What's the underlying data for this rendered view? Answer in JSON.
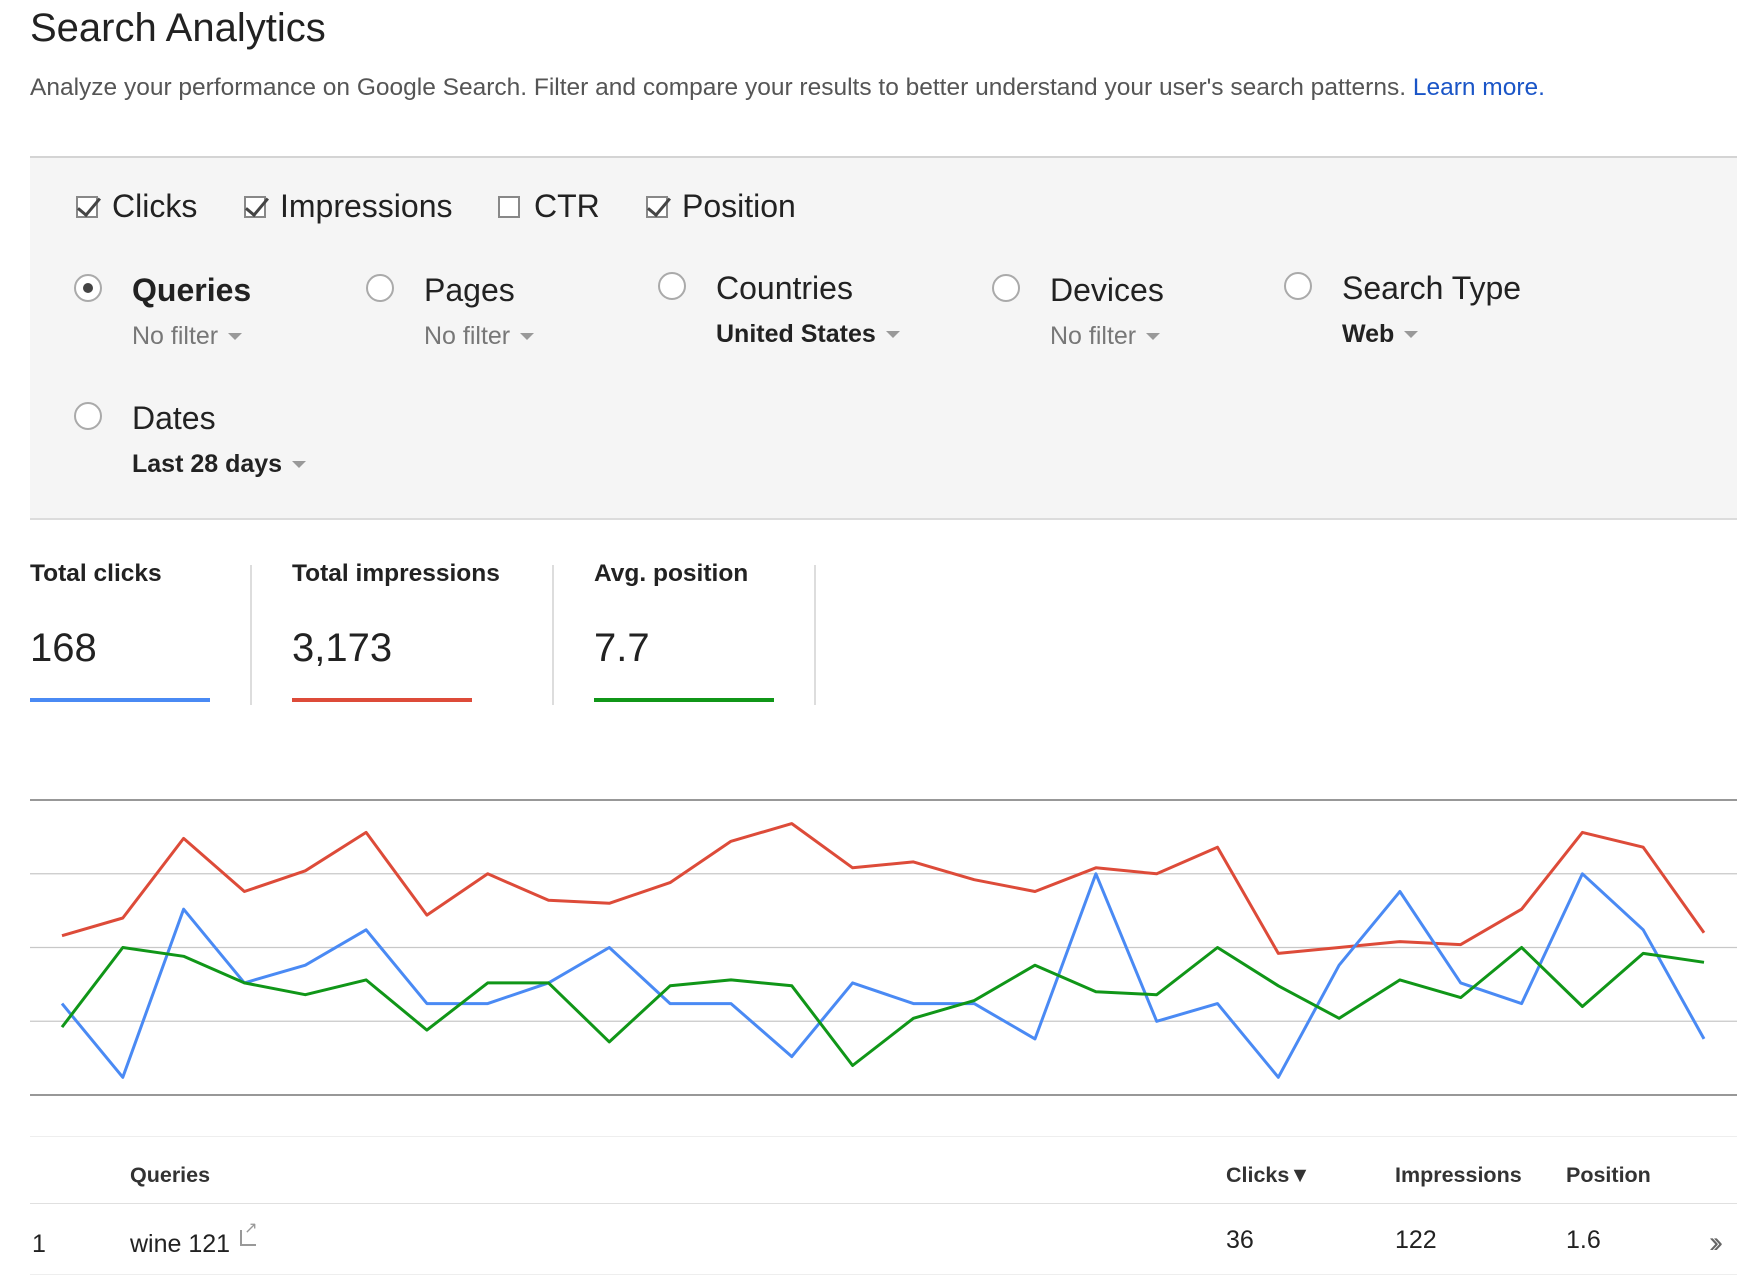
{
  "header": {
    "title": "Search Analytics",
    "subtitle": "Analyze your performance on Google Search. Filter and compare your results to better understand your user's search patterns.",
    "learn_more": "Learn more."
  },
  "metrics": [
    {
      "label": "Clicks",
      "checked": true
    },
    {
      "label": "Impressions",
      "checked": true
    },
    {
      "label": "CTR",
      "checked": false
    },
    {
      "label": "Position",
      "checked": true
    }
  ],
  "dimensions": {
    "queries": {
      "label": "Queries",
      "filter": "No filter",
      "selected": true
    },
    "pages": {
      "label": "Pages",
      "filter": "No filter"
    },
    "countries": {
      "label": "Countries",
      "filter": "United States"
    },
    "devices": {
      "label": "Devices",
      "filter": "No filter"
    },
    "search_type": {
      "label": "Search Type",
      "filter": "Web"
    },
    "dates": {
      "label": "Dates",
      "filter": "Last 28 days"
    }
  },
  "totals": {
    "clicks": {
      "label": "Total clicks",
      "value": "168",
      "color": "#4a8af4"
    },
    "impressions": {
      "label": "Total impressions",
      "value": "3,173",
      "color": "#dd4b39"
    },
    "position": {
      "label": "Avg. position",
      "value": "7.7",
      "color": "#109618"
    }
  },
  "chart_data": {
    "type": "line",
    "x": [
      1,
      2,
      3,
      4,
      5,
      6,
      7,
      8,
      9,
      10,
      11,
      12,
      13,
      14,
      15,
      16,
      17,
      18,
      19,
      20,
      21,
      22,
      23,
      24,
      25,
      26,
      27,
      28
    ],
    "series": [
      {
        "name": "Impressions",
        "color": "#dd4b39",
        "values": [
          0.54,
          0.6,
          0.87,
          0.69,
          0.76,
          0.89,
          0.61,
          0.75,
          0.66,
          0.65,
          0.72,
          0.86,
          0.92,
          0.77,
          0.79,
          0.73,
          0.69,
          0.77,
          0.75,
          0.84,
          0.48,
          0.5,
          0.52,
          0.51,
          0.63,
          0.89,
          0.84,
          0.55
        ]
      },
      {
        "name": "Clicks",
        "color": "#4a8af4",
        "values": [
          0.31,
          0.06,
          0.63,
          0.38,
          0.44,
          0.56,
          0.31,
          0.31,
          0.38,
          0.5,
          0.31,
          0.31,
          0.13,
          0.38,
          0.31,
          0.31,
          0.19,
          0.75,
          0.25,
          0.31,
          0.06,
          0.44,
          0.69,
          0.38,
          0.31,
          0.75,
          0.56,
          0.19
        ]
      },
      {
        "name": "Position",
        "color": "#109618",
        "values": [
          0.23,
          0.5,
          0.47,
          0.38,
          0.34,
          0.39,
          0.22,
          0.38,
          0.38,
          0.18,
          0.37,
          0.39,
          0.37,
          0.1,
          0.26,
          0.32,
          0.44,
          0.35,
          0.34,
          0.5,
          0.37,
          0.26,
          0.39,
          0.33,
          0.5,
          0.3,
          0.48,
          0.45
        ]
      }
    ],
    "ylim": [
      0,
      1
    ],
    "grid": true
  },
  "table": {
    "headers": {
      "rank": "",
      "query": "Queries",
      "clicks": "Clicks▼",
      "impressions": "Impressions",
      "position": "Position"
    },
    "rows": [
      {
        "rank": "1",
        "query": "wine 121",
        "clicks": "36",
        "impressions": "122",
        "position": "1.6"
      }
    ]
  }
}
